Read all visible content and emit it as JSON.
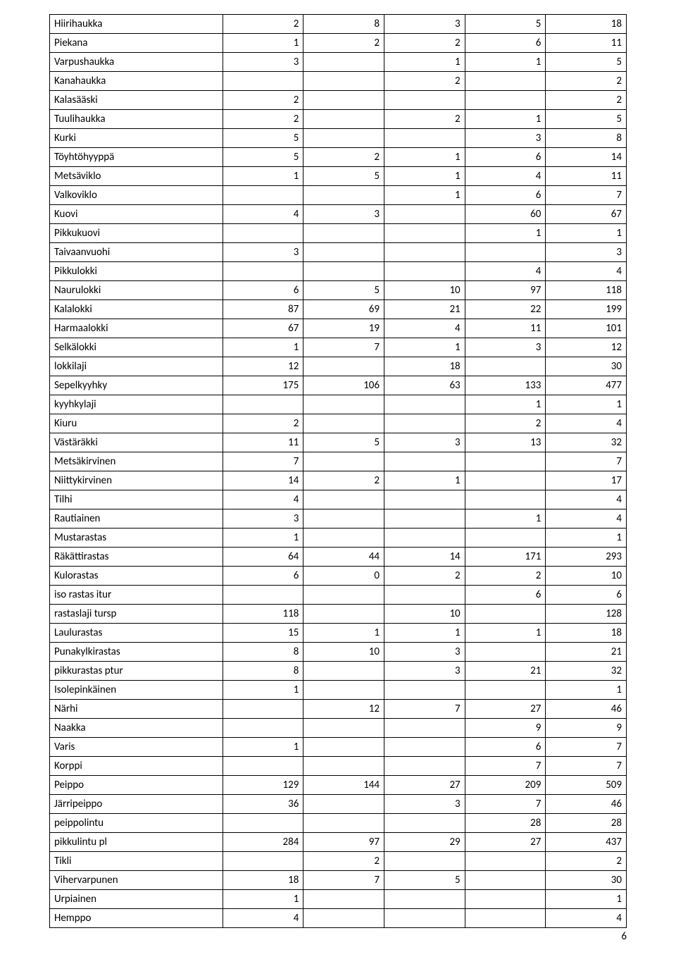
{
  "pageNumber": "6",
  "table": {
    "rows": [
      {
        "label": "Hiirihaukka",
        "c1": "2",
        "c2": "8",
        "c3": "3",
        "c4": "5",
        "c5": "18"
      },
      {
        "label": "Piekana",
        "c1": "1",
        "c2": "2",
        "c3": "2",
        "c4": "6",
        "c5": "11"
      },
      {
        "label": "Varpushaukka",
        "c1": "3",
        "c2": "",
        "c3": "1",
        "c4": "1",
        "c5": "5"
      },
      {
        "label": "Kanahaukka",
        "c1": "",
        "c2": "",
        "c3": "2",
        "c4": "",
        "c5": "2"
      },
      {
        "label": "Kalasääski",
        "c1": "2",
        "c2": "",
        "c3": "",
        "c4": "",
        "c5": "2"
      },
      {
        "label": "Tuulihaukka",
        "c1": "2",
        "c2": "",
        "c3": "2",
        "c4": "1",
        "c5": "5"
      },
      {
        "label": "Kurki",
        "c1": "5",
        "c2": "",
        "c3": "",
        "c4": "3",
        "c5": "8"
      },
      {
        "label": "Töyhtöhyyppä",
        "c1": "5",
        "c2": "2",
        "c3": "1",
        "c4": "6",
        "c5": "14"
      },
      {
        "label": "Metsäviklo",
        "c1": "1",
        "c2": "5",
        "c3": "1",
        "c4": "4",
        "c5": "11"
      },
      {
        "label": "Valkoviklo",
        "c1": "",
        "c2": "",
        "c3": "1",
        "c4": "6",
        "c5": "7"
      },
      {
        "label": "Kuovi",
        "c1": "4",
        "c2": "3",
        "c3": "",
        "c4": "60",
        "c5": "67"
      },
      {
        "label": "Pikkukuovi",
        "c1": "",
        "c2": "",
        "c3": "",
        "c4": "1",
        "c5": "1"
      },
      {
        "label": "Taivaanvuohi",
        "c1": "3",
        "c2": "",
        "c3": "",
        "c4": "",
        "c5": "3"
      },
      {
        "label": "Pikkulokki",
        "c1": "",
        "c2": "",
        "c3": "",
        "c4": "4",
        "c5": "4"
      },
      {
        "label": "Naurulokki",
        "c1": "6",
        "c2": "5",
        "c3": "10",
        "c4": "97",
        "c5": "118"
      },
      {
        "label": "Kalalokki",
        "c1": "87",
        "c2": "69",
        "c3": "21",
        "c4": "22",
        "c5": "199"
      },
      {
        "label": "Harmaalokki",
        "c1": "67",
        "c2": "19",
        "c3": "4",
        "c4": "11",
        "c5": "101"
      },
      {
        "label": "Selkälokki",
        "c1": "1",
        "c2": "7",
        "c3": "1",
        "c4": "3",
        "c5": "12"
      },
      {
        "label": "lokkilaji",
        "c1": "12",
        "c2": "",
        "c3": "18",
        "c4": "",
        "c5": "30"
      },
      {
        "label": "Sepelkyyhky",
        "c1": "175",
        "c2": "106",
        "c3": "63",
        "c4": "133",
        "c5": "477"
      },
      {
        "label": "kyyhkylaji",
        "c1": "",
        "c2": "",
        "c3": "",
        "c4": "1",
        "c5": "1"
      },
      {
        "label": "Kiuru",
        "c1": "2",
        "c2": "",
        "c3": "",
        "c4": "2",
        "c5": "4"
      },
      {
        "label": "Västäräkki",
        "c1": "11",
        "c2": "5",
        "c3": "3",
        "c4": "13",
        "c5": "32"
      },
      {
        "label": "Metsäkirvinen",
        "c1": "7",
        "c2": "",
        "c3": "",
        "c4": "",
        "c5": "7"
      },
      {
        "label": "Niittykirvinen",
        "c1": "14",
        "c2": "2",
        "c3": "1",
        "c4": "",
        "c5": "17"
      },
      {
        "label": "Tilhi",
        "c1": "4",
        "c2": "",
        "c3": "",
        "c4": "",
        "c5": "4"
      },
      {
        "label": "Rautiainen",
        "c1": "3",
        "c2": "",
        "c3": "",
        "c4": "1",
        "c5": "4"
      },
      {
        "label": "Mustarastas",
        "c1": "1",
        "c2": "",
        "c3": "",
        "c4": "",
        "c5": "1"
      },
      {
        "label": "Räkättirastas",
        "c1": "64",
        "c2": "44",
        "c3": "14",
        "c4": "171",
        "c5": "293"
      },
      {
        "label": "Kulorastas",
        "c1": "6",
        "c2": "0",
        "c3": "2",
        "c4": "2",
        "c5": "10"
      },
      {
        "label": "iso rastas itur",
        "c1": "",
        "c2": "",
        "c3": "",
        "c4": "6",
        "c5": "6"
      },
      {
        "label": "rastaslaji tursp",
        "c1": "118",
        "c2": "",
        "c3": "10",
        "c4": "",
        "c5": "128"
      },
      {
        "label": "Laulurastas",
        "c1": "15",
        "c2": "1",
        "c3": "1",
        "c4": "1",
        "c5": "18"
      },
      {
        "label": "Punakylkirastas",
        "c1": "8",
        "c2": "10",
        "c3": "3",
        "c4": "",
        "c5": "21"
      },
      {
        "label": "pikkurastas ptur",
        "c1": "8",
        "c2": "",
        "c3": "3",
        "c4": "21",
        "c5": "32"
      },
      {
        "label": "Isolepinkäinen",
        "c1": "1",
        "c2": "",
        "c3": "",
        "c4": "",
        "c5": "1"
      },
      {
        "label": "Närhi",
        "c1": "",
        "c2": "12",
        "c3": "7",
        "c4": "27",
        "c5": "46"
      },
      {
        "label": "Naakka",
        "c1": "",
        "c2": "",
        "c3": "",
        "c4": "9",
        "c5": "9"
      },
      {
        "label": "Varis",
        "c1": "1",
        "c2": "",
        "c3": "",
        "c4": "6",
        "c5": "7"
      },
      {
        "label": "Korppi",
        "c1": "",
        "c2": "",
        "c3": "",
        "c4": "7",
        "c5": "7"
      },
      {
        "label": "Peippo",
        "c1": "129",
        "c2": "144",
        "c3": "27",
        "c4": "209",
        "c5": "509"
      },
      {
        "label": "Järripeippo",
        "c1": "36",
        "c2": "",
        "c3": "3",
        "c4": "7",
        "c5": "46"
      },
      {
        "label": "peippolintu",
        "c1": "",
        "c2": "",
        "c3": "",
        "c4": "28",
        "c5": "28"
      },
      {
        "label": "pikkulintu pl",
        "c1": "284",
        "c2": "97",
        "c3": "29",
        "c4": "27",
        "c5": "437"
      },
      {
        "label": "Tikli",
        "c1": "",
        "c2": "2",
        "c3": "",
        "c4": "",
        "c5": "2"
      },
      {
        "label": "Vihervarpunen",
        "c1": "18",
        "c2": "7",
        "c3": "5",
        "c4": "",
        "c5": "30"
      },
      {
        "label": "Urpiainen",
        "c1": "1",
        "c2": "",
        "c3": "",
        "c4": "",
        "c5": "1"
      },
      {
        "label": "Hemppo",
        "c1": "4",
        "c2": "",
        "c3": "",
        "c4": "",
        "c5": "4"
      }
    ]
  }
}
